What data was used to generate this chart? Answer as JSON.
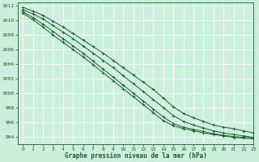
{
  "bg_color": "#cceedd",
  "grid_color": "#ffffff",
  "line_color": "#1a5c2a",
  "tick_color": "#1a5c2a",
  "xlabel": "Graphe pression niveau de la mer (hPa)",
  "xlabel_color": "#1a5c2a",
  "ylim": [
    993.0,
    1012.5
  ],
  "xlim": [
    -0.5,
    23
  ],
  "yticks": [
    994,
    996,
    998,
    1000,
    1002,
    1004,
    1006,
    1008,
    1010,
    1012
  ],
  "xticks": [
    0,
    1,
    2,
    3,
    4,
    5,
    6,
    7,
    8,
    9,
    10,
    11,
    12,
    13,
    14,
    15,
    16,
    17,
    18,
    19,
    20,
    21,
    22,
    23
  ],
  "lines": [
    [
      1011.8,
      1011.3,
      1010.7,
      1009.9,
      1009.1,
      1008.2,
      1007.3,
      1006.4,
      1005.5,
      1004.5,
      1003.5,
      1002.5,
      1001.5,
      1000.5,
      999.3,
      998.1,
      997.2,
      996.6,
      996.1,
      995.6,
      995.3,
      995.1,
      994.8,
      994.5
    ],
    [
      1011.5,
      1010.9,
      1010.2,
      1009.3,
      1008.4,
      1007.5,
      1006.5,
      1005.5,
      1004.5,
      1003.5,
      1002.4,
      1001.3,
      1000.2,
      999.1,
      998.0,
      996.9,
      996.1,
      995.6,
      995.2,
      994.8,
      994.5,
      994.3,
      994.1,
      993.9
    ],
    [
      1011.2,
      1010.4,
      1009.5,
      1008.5,
      1007.5,
      1006.5,
      1005.5,
      1004.4,
      1003.3,
      1002.2,
      1001.1,
      1000.0,
      998.9,
      997.8,
      996.7,
      995.8,
      995.3,
      995.0,
      994.7,
      994.4,
      994.2,
      994.0,
      993.9,
      993.8
    ],
    [
      1011.0,
      1010.1,
      1009.1,
      1008.0,
      1007.0,
      1006.0,
      1005.0,
      1003.9,
      1002.8,
      1001.7,
      1000.6,
      999.5,
      998.4,
      997.3,
      996.2,
      995.5,
      995.1,
      994.8,
      994.5,
      994.3,
      994.1,
      993.9,
      993.8,
      993.7
    ]
  ]
}
